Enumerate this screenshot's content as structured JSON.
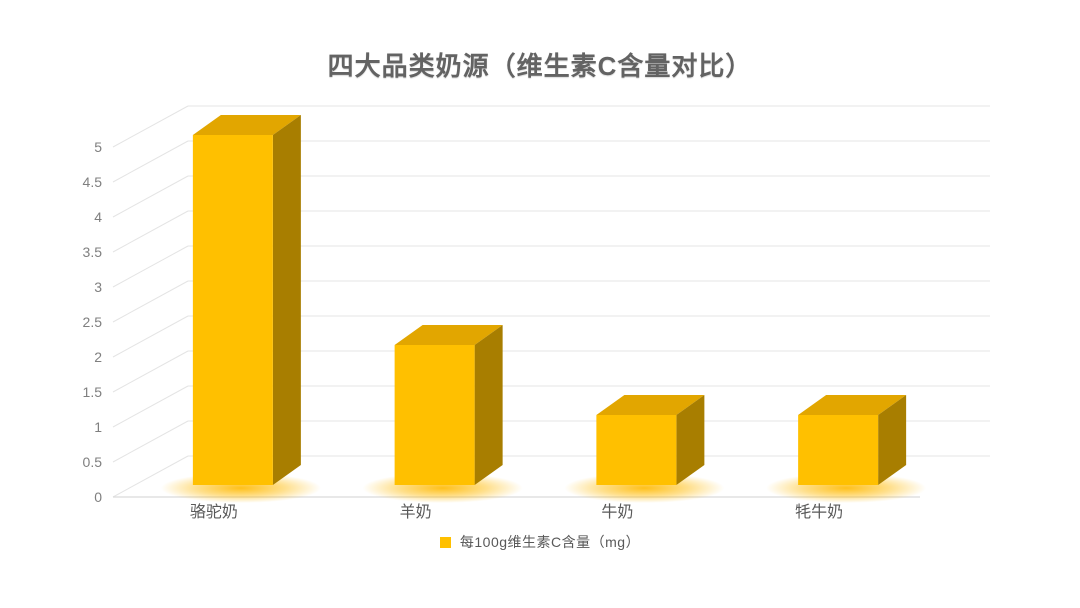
{
  "title": "四大品类奶源（维生素C含量对比）",
  "legend": {
    "marker_icon": "square",
    "label": "每100g维生素C含量（mg）"
  },
  "chart_data": {
    "type": "bar",
    "style": "3d-column",
    "title": "四大品类奶源（维生素C含量对比）",
    "categories": [
      "骆驼奶",
      "羊奶",
      "牛奶",
      "牦牛奶"
    ],
    "series": [
      {
        "name": "每100g维生素C含量（mg）",
        "values": [
          5,
          2,
          1,
          1
        ]
      }
    ],
    "xlabel": "",
    "ylabel": "",
    "ylim": [
      0,
      5
    ],
    "ytick_labels": [
      "0",
      "0.5",
      "1",
      "1.5",
      "2",
      "2.5",
      "3",
      "3.5",
      "4",
      "4.5",
      "5"
    ],
    "grid": true,
    "legend_position": "bottom",
    "colors": {
      "bar_front": "#FFC000",
      "bar_top": "#E2A600",
      "bar_side": "#A87E00",
      "bar_glow": "#FFB900",
      "gridline": "#E4E4E4",
      "axis_line": "#D9D9D9",
      "tick_text": "#7F7F7F",
      "category_text": "#595959",
      "title_text": "#636363"
    }
  }
}
